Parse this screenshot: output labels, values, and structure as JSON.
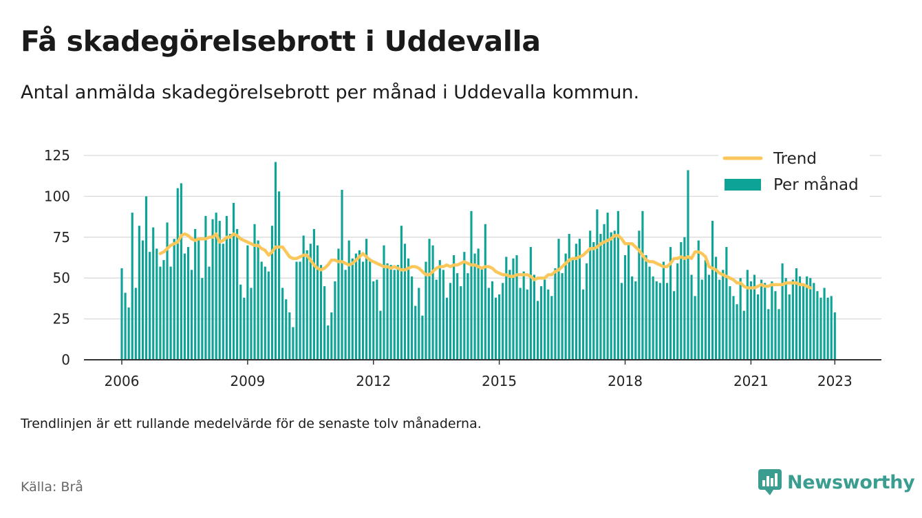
{
  "title": "Få skadegörelsebrott i Uddevalla",
  "subtitle": "Antal anmälda skadegörelsebrott per månad i Uddevalla kommun.",
  "note": "Trendlinjen är ett rullande medelvärde för de senaste tolv månaderna.",
  "source": "Källa: Brå",
  "brand": {
    "name": "Newsworthy",
    "icon": "newsworthy-logo-icon"
  },
  "colors": {
    "bars": "#0ea397",
    "trend": "#fbc75b",
    "grid": "#d9d9d9",
    "axis": "#333333",
    "brand": "#3a9d8f"
  },
  "chart_data": {
    "type": "bar",
    "x_start": "2006-01",
    "frequency": "monthly",
    "xticks": [
      "2006",
      "2009",
      "2012",
      "2015",
      "2018",
      "2021",
      "2023"
    ],
    "yticks": [
      "0",
      "25",
      "50",
      "75",
      "100",
      "125"
    ],
    "ylim": [
      0,
      125
    ],
    "grid": true,
    "legend_position": "top-right",
    "series": [
      {
        "name": "Per månad",
        "type": "bar",
        "values": [
          56,
          41,
          32,
          90,
          44,
          82,
          73,
          100,
          66,
          81,
          68,
          57,
          61,
          84,
          57,
          74,
          105,
          108,
          65,
          69,
          55,
          80,
          73,
          50,
          88,
          57,
          86,
          90,
          85,
          71,
          88,
          77,
          96,
          80,
          46,
          38,
          70,
          44,
          83,
          73,
          60,
          57,
          54,
          82,
          121,
          103,
          44,
          37,
          29,
          20,
          60,
          60,
          76,
          67,
          71,
          80,
          70,
          58,
          45,
          21,
          29,
          48,
          68,
          104,
          55,
          73,
          62,
          65,
          67,
          60,
          74,
          62,
          48,
          49,
          30,
          70,
          59,
          58,
          55,
          58,
          82,
          71,
          62,
          51,
          33,
          44,
          27,
          60,
          74,
          70,
          49,
          61,
          55,
          38,
          47,
          64,
          53,
          45,
          66,
          53,
          91,
          65,
          68,
          57,
          83,
          44,
          48,
          38,
          40,
          47,
          63,
          55,
          62,
          64,
          44,
          54,
          43,
          69,
          52,
          36,
          45,
          49,
          43,
          39,
          56,
          74,
          53,
          65,
          77,
          61,
          71,
          74,
          43,
          59,
          79,
          72,
          92,
          77,
          83,
          90,
          78,
          79,
          91,
          47,
          64,
          71,
          51,
          48,
          79,
          91,
          64,
          57,
          51,
          48,
          47,
          60,
          47,
          69,
          42,
          59,
          72,
          75,
          116,
          52,
          39,
          73,
          49,
          61,
          52,
          85,
          63,
          49,
          55,
          69,
          45,
          39,
          34,
          50,
          30,
          55,
          48,
          52,
          40,
          49,
          47,
          31,
          48,
          42,
          31,
          59,
          50,
          40,
          49,
          56,
          51,
          45,
          51,
          50,
          47,
          42,
          38,
          44,
          38,
          39,
          29
        ]
      },
      {
        "name": "Trend",
        "type": "line",
        "x_start": "2006-12",
        "values": [
          65,
          66,
          68,
          70,
          71,
          72,
          76,
          77,
          76,
          74,
          73,
          74,
          74,
          74,
          75,
          75,
          77,
          72,
          73,
          75,
          75,
          77,
          76,
          74,
          73,
          72,
          71,
          70,
          70,
          68,
          67,
          64,
          66,
          69,
          69,
          69,
          66,
          63,
          62,
          62,
          63,
          64,
          64,
          61,
          58,
          56,
          55,
          56,
          58,
          61,
          61,
          60,
          60,
          59,
          58,
          59,
          61,
          63,
          65,
          63,
          61,
          60,
          59,
          58,
          57,
          57,
          56,
          57,
          56,
          55,
          55,
          56,
          57,
          57,
          56,
          54,
          52,
          52,
          54,
          56,
          57,
          57,
          58,
          57,
          58,
          58,
          59,
          60,
          59,
          58,
          58,
          57,
          56,
          57,
          57,
          56,
          54,
          53,
          52,
          52,
          51,
          51,
          52,
          52,
          52,
          52,
          51,
          49,
          50,
          50,
          50,
          52,
          52,
          54,
          55,
          57,
          59,
          61,
          62,
          62,
          63,
          64,
          66,
          68,
          68,
          69,
          71,
          72,
          73,
          74,
          76,
          76,
          74,
          71,
          71,
          71,
          69,
          67,
          64,
          61,
          60,
          60,
          59,
          58,
          57,
          57,
          59,
          62,
          62,
          63,
          62,
          63,
          62,
          66,
          66,
          65,
          63,
          57,
          56,
          55,
          53,
          52,
          51,
          50,
          49,
          47,
          47,
          45,
          44,
          44,
          44,
          45,
          46,
          45,
          45,
          46,
          46,
          46,
          46,
          47,
          47,
          47,
          47,
          46,
          46,
          45,
          44
        ]
      }
    ]
  }
}
